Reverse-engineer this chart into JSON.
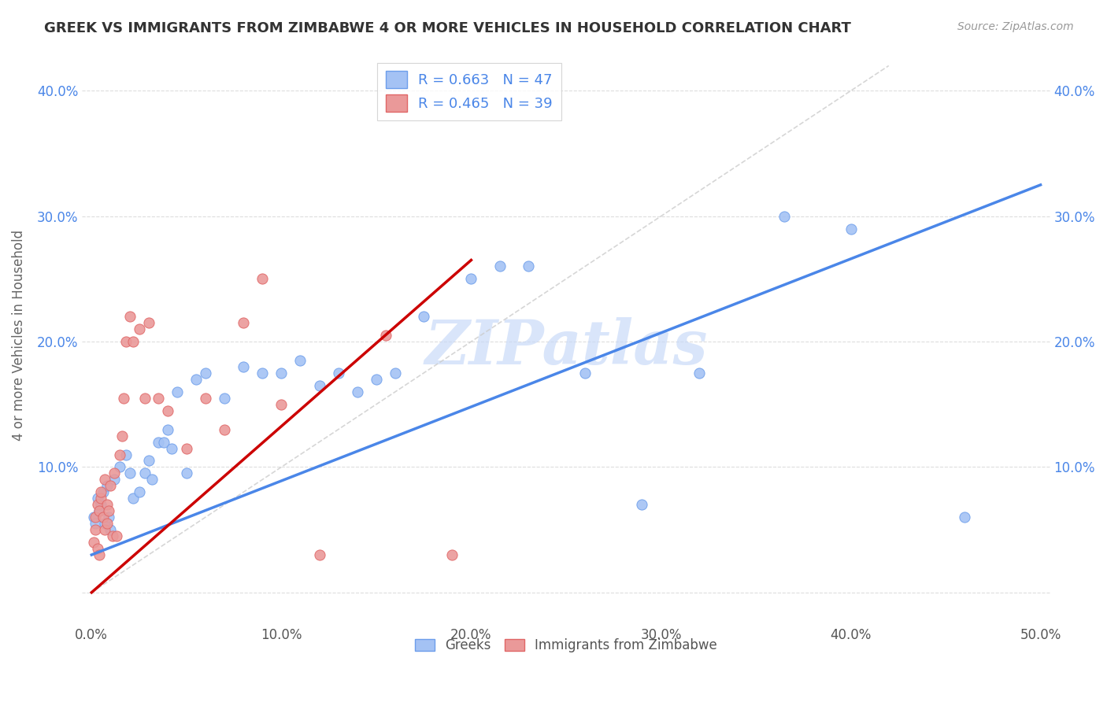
{
  "title": "GREEK VS IMMIGRANTS FROM ZIMBABWE 4 OR MORE VEHICLES IN HOUSEHOLD CORRELATION CHART",
  "source": "Source: ZipAtlas.com",
  "ylabel_label": "4 or more Vehicles in Household",
  "xlim": [
    -0.005,
    0.505
  ],
  "ylim": [
    -0.025,
    0.435
  ],
  "xticks": [
    0.0,
    0.1,
    0.2,
    0.3,
    0.4,
    0.5
  ],
  "xticklabels": [
    "0.0%",
    "10.0%",
    "20.0%",
    "30.0%",
    "40.0%",
    "50.0%"
  ],
  "yticks": [
    0.0,
    0.1,
    0.2,
    0.3,
    0.4
  ],
  "yticklabels_left": [
    "",
    "10.0%",
    "20.0%",
    "30.0%",
    "40.0%"
  ],
  "yticklabels_right": [
    "",
    "10.0%",
    "20.0%",
    "30.0%",
    "40.0%"
  ],
  "legend_blue_label": "R = 0.663   N = 47",
  "legend_pink_label": "R = 0.465   N = 39",
  "blue_scatter_color": "#a4c2f4",
  "blue_edge_color": "#6d9eeb",
  "pink_scatter_color": "#ea9999",
  "pink_edge_color": "#e06666",
  "blue_line_color": "#4a86e8",
  "pink_line_color": "#cc0000",
  "diag_color": "#cccccc",
  "grid_color": "#dddddd",
  "watermark": "ZIPatlas",
  "watermark_color": "#c9daf8",
  "tick_color": "#4a86e8",
  "ylabel_color": "#666666",
  "title_color": "#333333",
  "source_color": "#999999",
  "blue_line_x0": 0.0,
  "blue_line_y0": 0.03,
  "blue_line_x1": 0.5,
  "blue_line_y1": 0.325,
  "pink_line_x0": 0.0,
  "pink_line_y0": 0.0,
  "pink_line_x1": 0.2,
  "pink_line_y1": 0.265,
  "blue_x": [
    0.001,
    0.002,
    0.003,
    0.004,
    0.005,
    0.006,
    0.007,
    0.008,
    0.009,
    0.01,
    0.012,
    0.015,
    0.018,
    0.02,
    0.022,
    0.025,
    0.028,
    0.03,
    0.032,
    0.035,
    0.038,
    0.04,
    0.042,
    0.045,
    0.05,
    0.055,
    0.06,
    0.07,
    0.08,
    0.09,
    0.1,
    0.11,
    0.12,
    0.13,
    0.14,
    0.15,
    0.16,
    0.175,
    0.2,
    0.215,
    0.23,
    0.26,
    0.29,
    0.32,
    0.365,
    0.4,
    0.46
  ],
  "blue_y": [
    0.06,
    0.055,
    0.075,
    0.065,
    0.07,
    0.08,
    0.055,
    0.085,
    0.06,
    0.05,
    0.09,
    0.1,
    0.11,
    0.095,
    0.075,
    0.08,
    0.095,
    0.105,
    0.09,
    0.12,
    0.12,
    0.13,
    0.115,
    0.16,
    0.095,
    0.17,
    0.175,
    0.155,
    0.18,
    0.175,
    0.175,
    0.185,
    0.165,
    0.175,
    0.16,
    0.17,
    0.175,
    0.22,
    0.25,
    0.26,
    0.26,
    0.175,
    0.07,
    0.175,
    0.3,
    0.29,
    0.06
  ],
  "pink_x": [
    0.001,
    0.002,
    0.002,
    0.003,
    0.003,
    0.004,
    0.004,
    0.005,
    0.005,
    0.006,
    0.007,
    0.007,
    0.008,
    0.008,
    0.009,
    0.01,
    0.011,
    0.012,
    0.013,
    0.015,
    0.016,
    0.017,
    0.018,
    0.02,
    0.022,
    0.025,
    0.028,
    0.03,
    0.035,
    0.04,
    0.05,
    0.06,
    0.07,
    0.08,
    0.09,
    0.1,
    0.12,
    0.155,
    0.19
  ],
  "pink_y": [
    0.04,
    0.05,
    0.06,
    0.035,
    0.07,
    0.065,
    0.03,
    0.075,
    0.08,
    0.06,
    0.05,
    0.09,
    0.07,
    0.055,
    0.065,
    0.085,
    0.045,
    0.095,
    0.045,
    0.11,
    0.125,
    0.155,
    0.2,
    0.22,
    0.2,
    0.21,
    0.155,
    0.215,
    0.155,
    0.145,
    0.115,
    0.155,
    0.13,
    0.215,
    0.25,
    0.15,
    0.03,
    0.205,
    0.03
  ]
}
